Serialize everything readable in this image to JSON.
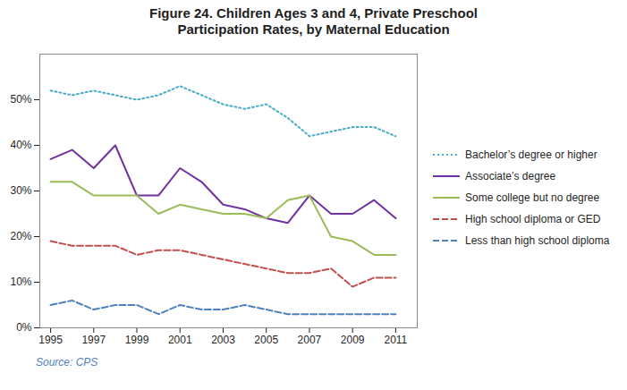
{
  "chart_data": {
    "type": "line",
    "title": "Figure 24. Children Ages 3 and 4, Private Preschool\nParticipation Rates, by Maternal Education",
    "annotations": [
      "Source: CPS"
    ],
    "x": [
      1995,
      1996,
      1997,
      1998,
      1999,
      2000,
      2001,
      2002,
      2003,
      2004,
      2005,
      2006,
      2007,
      2008,
      2009,
      2010,
      2011
    ],
    "series": [
      {
        "name": "Bachelor’s degree or higher",
        "color": "#4BACC6",
        "line_style": "dotted",
        "values": [
          0.52,
          0.51,
          0.52,
          0.51,
          0.5,
          0.51,
          0.53,
          0.51,
          0.49,
          0.48,
          0.49,
          0.46,
          0.42,
          0.43,
          0.44,
          0.44,
          0.42
        ]
      },
      {
        "name": "Associate’s degree",
        "color": "#7030A0",
        "line_style": "solid",
        "values": [
          0.37,
          0.39,
          0.35,
          0.4,
          0.29,
          0.29,
          0.35,
          0.32,
          0.27,
          0.26,
          0.24,
          0.23,
          0.29,
          0.25,
          0.25,
          0.28,
          0.24
        ]
      },
      {
        "name": "Some college but no degree",
        "color": "#9BBB59",
        "line_style": "solid",
        "values": [
          0.32,
          0.32,
          0.29,
          0.29,
          0.29,
          0.25,
          0.27,
          0.26,
          0.25,
          0.25,
          0.24,
          0.28,
          0.29,
          0.2,
          0.19,
          0.16,
          0.16
        ]
      },
      {
        "name": "High school diploma or GED",
        "color": "#C0504D",
        "line_style": "dashed",
        "values": [
          0.19,
          0.18,
          0.18,
          0.18,
          0.16,
          0.17,
          0.17,
          0.16,
          0.15,
          0.14,
          0.13,
          0.12,
          0.12,
          0.13,
          0.09,
          0.11,
          0.11
        ]
      },
      {
        "name": "Less than high school diploma",
        "color": "#4F81BD",
        "line_style": "dashed",
        "values": [
          0.05,
          0.06,
          0.04,
          0.05,
          0.05,
          0.03,
          0.05,
          0.04,
          0.04,
          0.05,
          0.04,
          0.03,
          0.03,
          0.03,
          0.03,
          0.03,
          0.03
        ]
      }
    ],
    "xlim": [
      1994.5,
      2012.0
    ],
    "xticks": [
      1995,
      1997,
      1999,
      2001,
      2003,
      2005,
      2007,
      2009,
      2011
    ],
    "ylim": [
      0,
      0.6
    ],
    "yticks": [
      {
        "value": 0.0,
        "label": "0%"
      },
      {
        "value": 0.1,
        "label": "10%"
      },
      {
        "value": 0.2,
        "label": "20%"
      },
      {
        "value": 0.3,
        "label": "30%"
      },
      {
        "value": 0.4,
        "label": "40%"
      },
      {
        "value": 0.5,
        "label": "50%"
      }
    ],
    "grid": false,
    "legend": "right"
  }
}
